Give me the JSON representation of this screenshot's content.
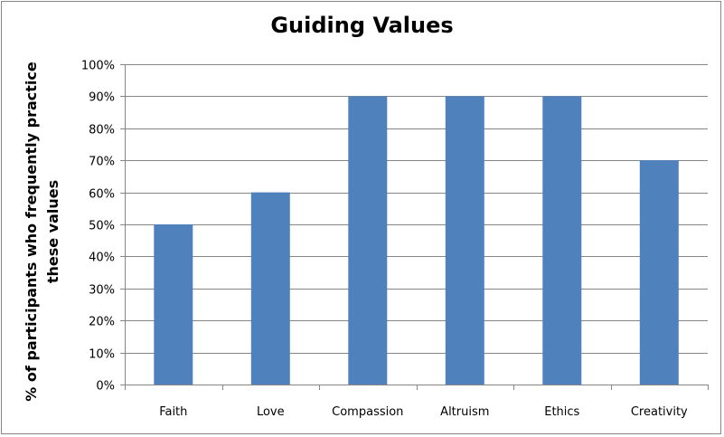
{
  "chart_data": {
    "type": "bar",
    "title": "Guiding Values",
    "xlabel": "",
    "ylabel_lines": [
      "% of participants  who frequently practice",
      "these values"
    ],
    "categories": [
      "Faith",
      "Love",
      "Compassion",
      "Altruism",
      "Ethics",
      "Creativity"
    ],
    "values": [
      50,
      60,
      90,
      90,
      90,
      70
    ],
    "ylim": [
      0,
      100
    ],
    "yticks": [
      "0%",
      "10%",
      "20%",
      "30%",
      "40%",
      "50%",
      "60%",
      "70%",
      "80%",
      "90%",
      "100%"
    ],
    "grid": true,
    "legend": "none",
    "bar_color": "#4F81BD",
    "grid_color": "#868686"
  }
}
